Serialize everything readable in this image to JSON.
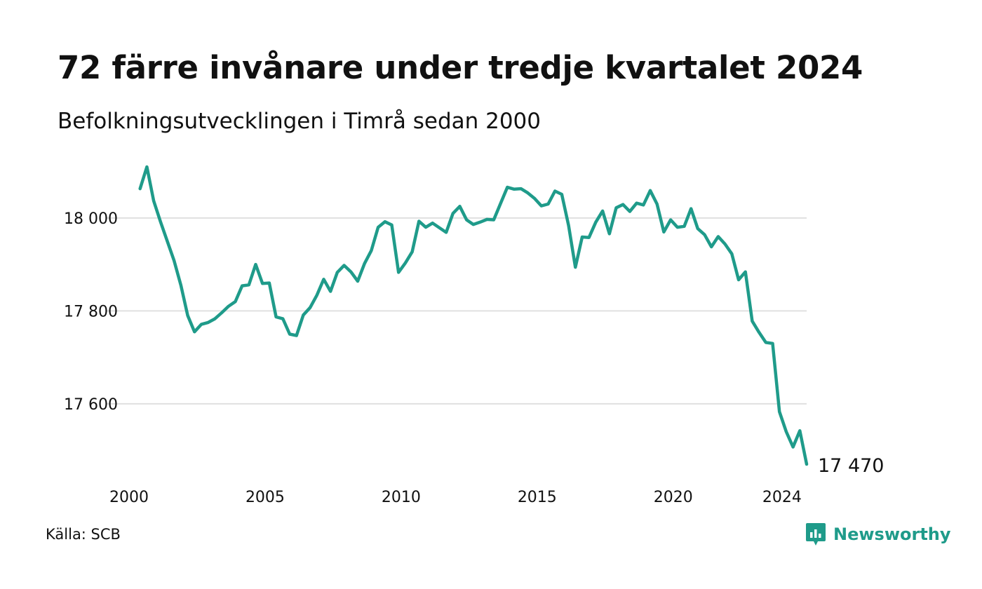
{
  "header": {
    "title": "72 färre invånare under tredje kvartalet 2024",
    "subtitle": "Befolkningsutvecklingen i Timrå sedan 2000"
  },
  "footer": {
    "source": "Källa: SCB",
    "brand": "Newsworthy"
  },
  "colors": {
    "line": "#1f9b8a",
    "grid": "#e0e0e0",
    "brand": "#1f9b8a"
  },
  "chart_data": {
    "type": "line",
    "title": "72 färre invånare under tredje kvartalet 2024",
    "subtitle": "Befolkningsutvecklingen i Timrå sedan 2000",
    "xlabel": "",
    "ylabel": "",
    "grid": true,
    "xlim": [
      2000,
      2024.75
    ],
    "ylim": [
      17470,
      18110
    ],
    "x_ticks": [
      {
        "value": 2000,
        "label": "2000"
      },
      {
        "value": 2005,
        "label": "2005"
      },
      {
        "value": 2010,
        "label": "2010"
      },
      {
        "value": 2015,
        "label": "2015"
      },
      {
        "value": 2020,
        "label": "2020"
      },
      {
        "value": 2024,
        "label": "2024"
      }
    ],
    "y_ticks": [
      {
        "value": 17600,
        "label": "17 600"
      },
      {
        "value": 17800,
        "label": "17 800"
      },
      {
        "value": 18000,
        "label": "18 000"
      }
    ],
    "end_label": "17 470",
    "series": [
      {
        "values": [
          [
            2000.25,
            18063
          ],
          [
            2000.5,
            18110
          ],
          [
            2000.75,
            18037
          ],
          [
            2001.0,
            17992
          ],
          [
            2001.25,
            17950
          ],
          [
            2001.5,
            17908
          ],
          [
            2001.75,
            17855
          ],
          [
            2002.0,
            17790
          ],
          [
            2002.25,
            17755
          ],
          [
            2002.5,
            17771
          ],
          [
            2002.75,
            17775
          ],
          [
            2003.0,
            17783
          ],
          [
            2003.25,
            17796
          ],
          [
            2003.5,
            17810
          ],
          [
            2003.75,
            17820
          ],
          [
            2004.0,
            17854
          ],
          [
            2004.25,
            17856
          ],
          [
            2004.5,
            17900
          ],
          [
            2004.75,
            17859
          ],
          [
            2005.0,
            17860
          ],
          [
            2005.25,
            17787
          ],
          [
            2005.5,
            17783
          ],
          [
            2005.75,
            17750
          ],
          [
            2006.0,
            17747
          ],
          [
            2006.25,
            17791
          ],
          [
            2006.5,
            17807
          ],
          [
            2006.75,
            17834
          ],
          [
            2007.0,
            17868
          ],
          [
            2007.25,
            17842
          ],
          [
            2007.5,
            17883
          ],
          [
            2007.75,
            17898
          ],
          [
            2008.0,
            17884
          ],
          [
            2008.25,
            17864
          ],
          [
            2008.5,
            17902
          ],
          [
            2008.75,
            17930
          ],
          [
            2009.0,
            17980
          ],
          [
            2009.25,
            17992
          ],
          [
            2009.5,
            17985
          ],
          [
            2009.75,
            17883
          ],
          [
            2010.0,
            17903
          ],
          [
            2010.25,
            17927
          ],
          [
            2010.5,
            17993
          ],
          [
            2010.75,
            17980
          ],
          [
            2011.0,
            17989
          ],
          [
            2011.25,
            17979
          ],
          [
            2011.5,
            17969
          ],
          [
            2011.75,
            18010
          ],
          [
            2012.0,
            18025
          ],
          [
            2012.25,
            17996
          ],
          [
            2012.5,
            17986
          ],
          [
            2012.75,
            17991
          ],
          [
            2013.0,
            17997
          ],
          [
            2013.25,
            17996
          ],
          [
            2013.5,
            18031
          ],
          [
            2013.75,
            18066
          ],
          [
            2014.0,
            18062
          ],
          [
            2014.25,
            18063
          ],
          [
            2014.5,
            18054
          ],
          [
            2014.75,
            18042
          ],
          [
            2015.0,
            18026
          ],
          [
            2015.25,
            18030
          ],
          [
            2015.5,
            18058
          ],
          [
            2015.75,
            18051
          ],
          [
            2016.0,
            17984
          ],
          [
            2016.25,
            17894
          ],
          [
            2016.5,
            17959
          ],
          [
            2016.75,
            17958
          ],
          [
            2017.0,
            17991
          ],
          [
            2017.25,
            18015
          ],
          [
            2017.5,
            17966
          ],
          [
            2017.75,
            18022
          ],
          [
            2018.0,
            18029
          ],
          [
            2018.25,
            18014
          ],
          [
            2018.5,
            18032
          ],
          [
            2018.75,
            18028
          ],
          [
            2019.0,
            18059
          ],
          [
            2019.25,
            18030
          ],
          [
            2019.5,
            17970
          ],
          [
            2019.75,
            17996
          ],
          [
            2020.0,
            17980
          ],
          [
            2020.25,
            17982
          ],
          [
            2020.5,
            18020
          ],
          [
            2020.75,
            17977
          ],
          [
            2021.0,
            17964
          ],
          [
            2021.25,
            17938
          ],
          [
            2021.5,
            17960
          ],
          [
            2021.75,
            17944
          ],
          [
            2022.0,
            17923
          ],
          [
            2022.25,
            17867
          ],
          [
            2022.5,
            17884
          ],
          [
            2022.75,
            17778
          ],
          [
            2023.0,
            17754
          ],
          [
            2023.25,
            17732
          ],
          [
            2023.5,
            17730
          ],
          [
            2023.75,
            17583
          ],
          [
            2024.0,
            17540
          ],
          [
            2024.25,
            17507
          ],
          [
            2024.5,
            17542
          ],
          [
            2024.75,
            17470
          ]
        ]
      }
    ]
  }
}
